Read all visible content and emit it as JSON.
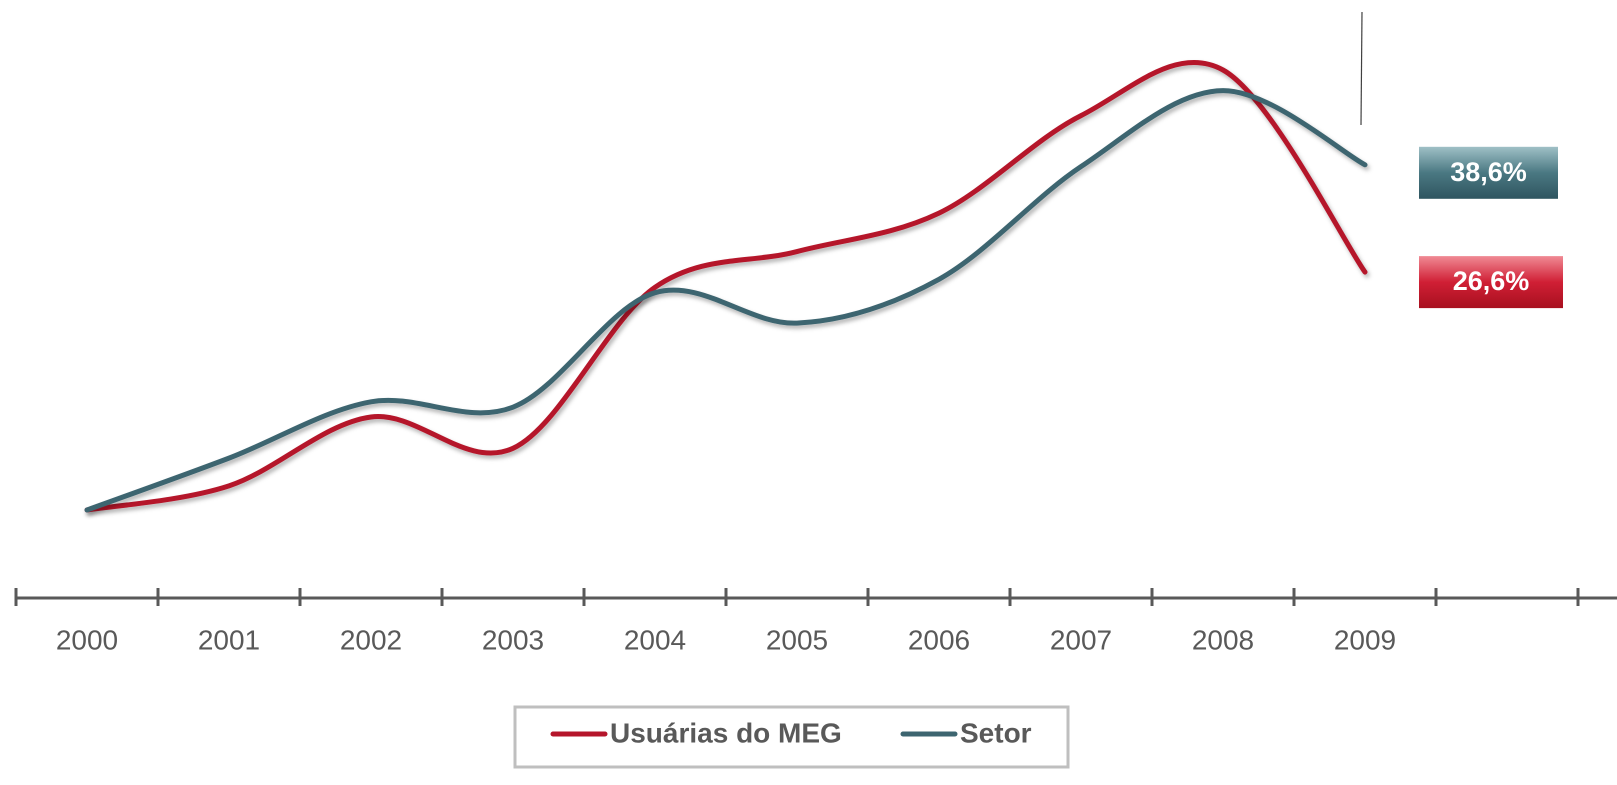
{
  "chart_data": {
    "type": "line",
    "categories": [
      "2000",
      "2001",
      "2002",
      "2003",
      "2004",
      "2005",
      "2006",
      "2007",
      "2008",
      "2009"
    ],
    "series": [
      {
        "name": "Usuárias do MEG",
        "color": "#b5152b",
        "values": [
          0,
          2.7,
          10.4,
          6.9,
          24.9,
          28.9,
          33.2,
          44.1,
          49.2,
          26.6
        ],
        "value_labels": [
          null,
          null,
          null,
          null,
          null,
          null,
          null,
          null,
          null,
          "26,6%"
        ]
      },
      {
        "name": "Setor",
        "color": "#3d6570",
        "values": [
          0,
          5.8,
          12.1,
          11.5,
          24.3,
          20.9,
          25.8,
          38.4,
          46.9,
          38.6
        ],
        "value_labels": [
          null,
          null,
          null,
          null,
          null,
          null,
          null,
          null,
          null,
          "38,6%"
        ]
      }
    ],
    "legend": "bottom"
  }
}
